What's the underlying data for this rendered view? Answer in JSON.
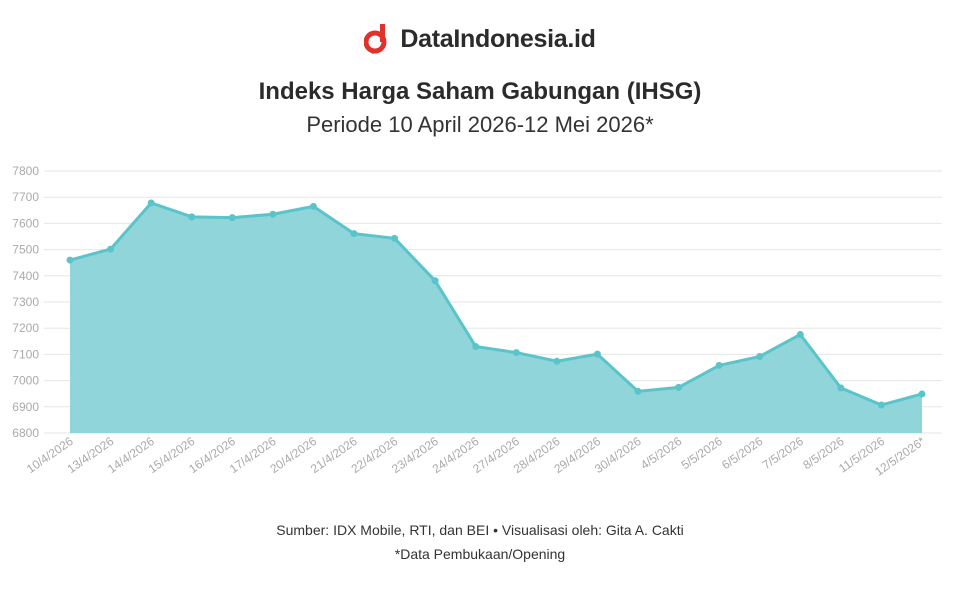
{
  "brand": {
    "name": "DataIndonesia.id",
    "logo_icon": "d-logo-icon",
    "logo_color": "#e0312b"
  },
  "colors": {
    "line": "#5bc4cb",
    "area": "#8fd5da",
    "grid": "#e6e6e6"
  },
  "chart_data": {
    "type": "area",
    "title": "Indeks Harga Saham Gabungan (IHSG)",
    "subtitle": "Periode 10 April 2026-12 Mei 2026*",
    "xlabel": "",
    "ylabel": "",
    "ylim": [
      6800,
      7800
    ],
    "yticks": [
      6800,
      6900,
      7000,
      7100,
      7200,
      7300,
      7400,
      7500,
      7600,
      7700,
      7800
    ],
    "grid": true,
    "categories": [
      "10/4/2026",
      "13/4/2026",
      "14/4/2026",
      "15/4/2026",
      "16/4/2026",
      "17/4/2026",
      "20/4/2026",
      "21/4/2026",
      "22/4/2026",
      "23/4/2026",
      "24/4/2026",
      "27/4/2026",
      "28/4/2026",
      "29/4/2026",
      "30/4/2026",
      "4/5/2026",
      "5/5/2026",
      "6/5/2026",
      "7/5/2026",
      "8/5/2026",
      "11/5/2026",
      "12/5/2026*"
    ],
    "values": [
      7460,
      7502,
      7678,
      7625,
      7622,
      7635,
      7665,
      7561,
      7543,
      7381,
      7130,
      7107,
      7074,
      7101,
      6959,
      6974,
      7058,
      7092,
      7176,
      6972,
      6907,
      6949
    ]
  },
  "footer": {
    "source": "Sumber: IDX Mobile, RTI, dan BEI • Visualisasi oleh: Gita A. Cakti",
    "note": "*Data Pembukaan/Opening"
  }
}
